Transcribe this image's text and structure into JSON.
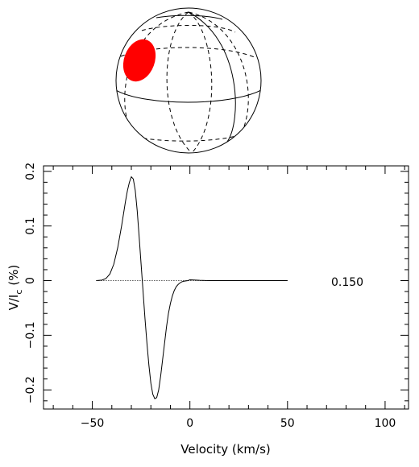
{
  "chart_data": {
    "type": "line",
    "xlabel": "Velocity (km/s)",
    "ylabel_main": "V/I",
    "ylabel_sub": "c",
    "ylabel_unit": "(%)",
    "annotation": "0.150",
    "xlim": [
      -75,
      112
    ],
    "ylim": [
      -0.235,
      0.21
    ],
    "x_ticks": [
      -50,
      0,
      50,
      100
    ],
    "x_tick_labels": [
      "−50",
      "0",
      "50",
      "100"
    ],
    "y_ticks": [
      -0.2,
      -0.1,
      0,
      0.1,
      0.2
    ],
    "y_tick_labels": [
      "−0.2",
      "−0.1",
      "0",
      "0.1",
      "0.2"
    ],
    "zero_line": {
      "x": [
        -48,
        50
      ],
      "y": 0
    },
    "series": [
      {
        "x": [
          -48,
          -45,
          -43,
          -41,
          -39,
          -37,
          -35,
          -33,
          -32,
          -31,
          -30,
          -29,
          -28,
          -27,
          -26,
          -25,
          -24,
          -23,
          -22,
          -21,
          -20,
          -19,
          -18,
          -17,
          -16,
          -15,
          -14,
          -13,
          -12,
          -11,
          -10,
          -9,
          -8,
          -7,
          -6,
          -5,
          -4,
          -3,
          -2,
          -1,
          0,
          2,
          5,
          10,
          20,
          30,
          40,
          50
        ],
        "y": [
          0,
          0.001,
          0.004,
          0.012,
          0.03,
          0.06,
          0.1,
          0.145,
          0.165,
          0.18,
          0.19,
          0.186,
          0.165,
          0.128,
          0.08,
          0.03,
          -0.02,
          -0.07,
          -0.115,
          -0.155,
          -0.188,
          -0.208,
          -0.216,
          -0.214,
          -0.2,
          -0.175,
          -0.145,
          -0.115,
          -0.085,
          -0.06,
          -0.042,
          -0.028,
          -0.018,
          -0.011,
          -0.007,
          -0.004,
          -0.002,
          -0.001,
          -0.0005,
          0,
          0.0015,
          0.0012,
          0.0005,
          0,
          0,
          0,
          0,
          0
        ]
      }
    ]
  },
  "sphere": {
    "spot_color": "#ff0000"
  }
}
